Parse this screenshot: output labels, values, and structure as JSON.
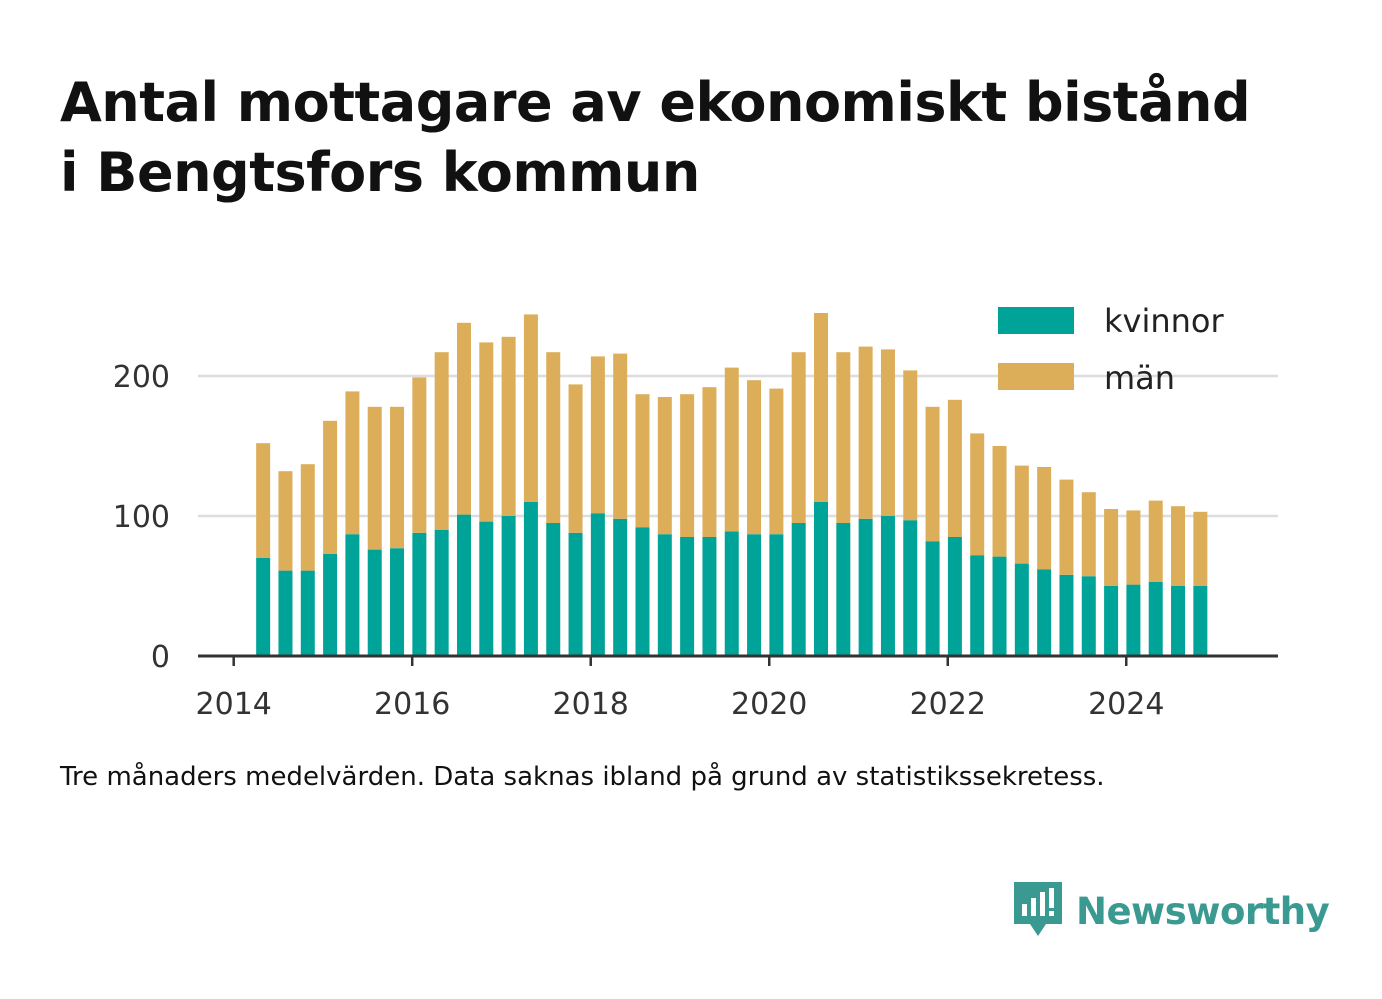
{
  "title": {
    "line1": "Antal mottagare av ekonomiskt bistånd",
    "line2": "i Bengtsfors kommun"
  },
  "footnote": "Tre månaders medelvärden. Data saknas ibland på grund av statistikssekretess.",
  "brand": {
    "name": "Newsworthy",
    "icon": "newsworthy-logo-icon",
    "color": "#3a9a92"
  },
  "colors": {
    "kvinnor": "#00a398",
    "man": "#dcae5a",
    "grid": "#dddddd",
    "axis": "#333333"
  },
  "chart_data": {
    "type": "bar",
    "stacked": true,
    "title": "",
    "xlabel": "",
    "ylabel": "",
    "xlim": [
      2013.6,
      2025.7
    ],
    "ylim": [
      0,
      250
    ],
    "x_ticks": [
      2014,
      2016,
      2018,
      2020,
      2022,
      2024
    ],
    "y_ticks": [
      0,
      100,
      200
    ],
    "grid": "horizontal",
    "legend_position": "top-right",
    "x": [
      2014.33,
      2014.58,
      2014.83,
      2015.08,
      2015.33,
      2015.58,
      2015.83,
      2016.08,
      2016.33,
      2016.58,
      2016.83,
      2017.08,
      2017.33,
      2017.58,
      2017.83,
      2018.08,
      2018.33,
      2018.58,
      2018.83,
      2019.08,
      2019.33,
      2019.58,
      2019.83,
      2020.08,
      2020.33,
      2020.58,
      2020.83,
      2021.08,
      2021.33,
      2021.58,
      2021.83,
      2022.08,
      2022.33,
      2022.58,
      2022.83,
      2023.08,
      2023.33,
      2023.58,
      2023.83,
      2024.08,
      2024.33,
      2024.58,
      2024.83
    ],
    "series": [
      {
        "name": "kvinnor",
        "values": [
          70,
          61,
          61,
          73,
          87,
          76,
          77,
          88,
          90,
          101,
          96,
          100,
          110,
          95,
          88,
          102,
          98,
          92,
          87,
          85,
          85,
          89,
          87,
          87,
          95,
          110,
          95,
          98,
          100,
          97,
          82,
          85,
          72,
          71,
          66,
          62,
          58,
          57,
          50,
          51,
          53,
          50,
          50
        ]
      },
      {
        "name": "män",
        "values": [
          82,
          71,
          76,
          95,
          102,
          102,
          101,
          111,
          127,
          137,
          128,
          128,
          134,
          122,
          106,
          112,
          118,
          95,
          98,
          102,
          107,
          117,
          110,
          104,
          122,
          135,
          122,
          123,
          119,
          107,
          96,
          98,
          87,
          79,
          70,
          73,
          68,
          60,
          55,
          53,
          58,
          57,
          53
        ]
      }
    ]
  }
}
